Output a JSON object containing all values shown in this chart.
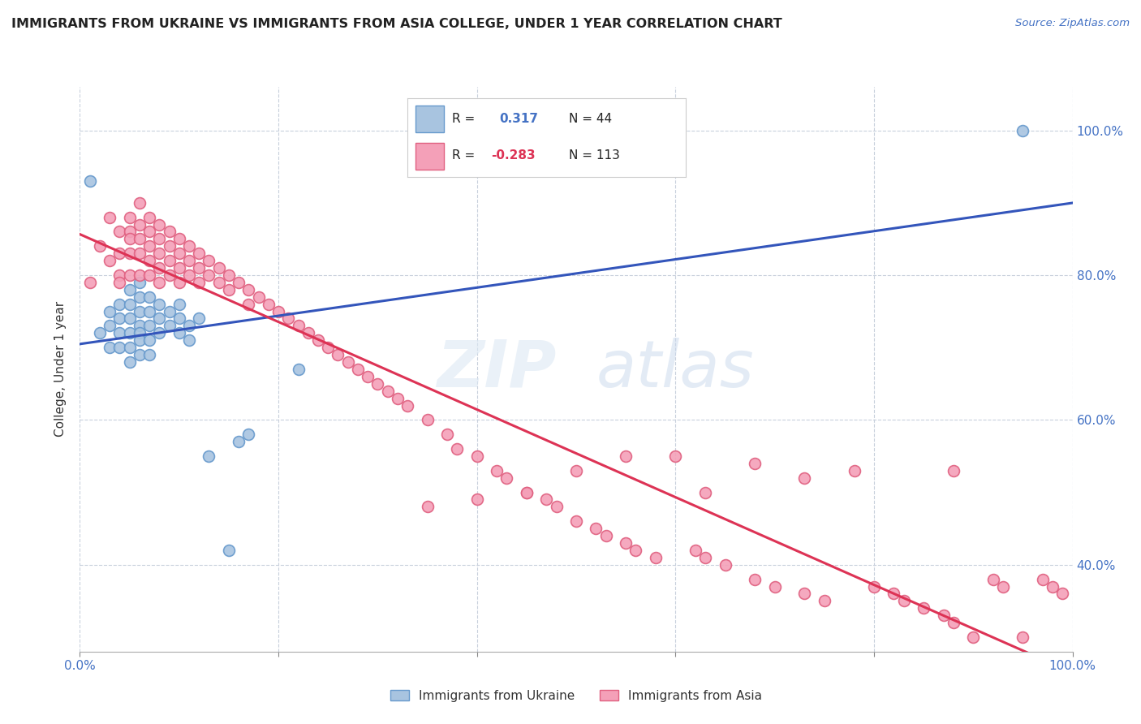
{
  "title": "IMMIGRANTS FROM UKRAINE VS IMMIGRANTS FROM ASIA COLLEGE, UNDER 1 YEAR CORRELATION CHART",
  "source": "Source: ZipAtlas.com",
  "ylabel": "College, Under 1 year",
  "xlim": [
    0,
    1.0
  ],
  "ylim": [
    0.25,
    1.05
  ],
  "ukraine_color": "#a8c4e0",
  "ukraine_edge_color": "#6699cc",
  "asia_color": "#f4a0b8",
  "asia_edge_color": "#e06080",
  "ukraine_line_color": "#3355bb",
  "asia_line_color": "#dd3355",
  "R_ukraine": 0.317,
  "N_ukraine": 44,
  "R_asia": -0.283,
  "N_asia": 113,
  "watermark_zip": "ZIP",
  "watermark_atlas": "atlas",
  "ukraine_scatter_x": [
    0.01,
    0.02,
    0.03,
    0.03,
    0.03,
    0.04,
    0.04,
    0.04,
    0.04,
    0.05,
    0.05,
    0.05,
    0.05,
    0.05,
    0.05,
    0.06,
    0.06,
    0.06,
    0.06,
    0.06,
    0.06,
    0.06,
    0.07,
    0.07,
    0.07,
    0.07,
    0.07,
    0.08,
    0.08,
    0.08,
    0.09,
    0.09,
    0.1,
    0.1,
    0.1,
    0.11,
    0.11,
    0.12,
    0.13,
    0.15,
    0.16,
    0.17,
    0.22,
    0.95
  ],
  "ukraine_scatter_y": [
    0.93,
    0.72,
    0.75,
    0.73,
    0.7,
    0.76,
    0.74,
    0.72,
    0.7,
    0.78,
    0.76,
    0.74,
    0.72,
    0.7,
    0.68,
    0.79,
    0.77,
    0.75,
    0.73,
    0.72,
    0.71,
    0.69,
    0.77,
    0.75,
    0.73,
    0.71,
    0.69,
    0.76,
    0.74,
    0.72,
    0.75,
    0.73,
    0.76,
    0.74,
    0.72,
    0.73,
    0.71,
    0.74,
    0.55,
    0.42,
    0.57,
    0.58,
    0.67,
    1.0
  ],
  "asia_scatter_x": [
    0.01,
    0.02,
    0.03,
    0.03,
    0.04,
    0.04,
    0.04,
    0.04,
    0.05,
    0.05,
    0.05,
    0.05,
    0.05,
    0.06,
    0.06,
    0.06,
    0.06,
    0.06,
    0.07,
    0.07,
    0.07,
    0.07,
    0.07,
    0.08,
    0.08,
    0.08,
    0.08,
    0.08,
    0.09,
    0.09,
    0.09,
    0.09,
    0.1,
    0.1,
    0.1,
    0.1,
    0.11,
    0.11,
    0.11,
    0.12,
    0.12,
    0.12,
    0.13,
    0.13,
    0.14,
    0.14,
    0.15,
    0.15,
    0.16,
    0.17,
    0.17,
    0.18,
    0.19,
    0.2,
    0.21,
    0.22,
    0.23,
    0.24,
    0.25,
    0.26,
    0.27,
    0.28,
    0.29,
    0.3,
    0.31,
    0.32,
    0.33,
    0.35,
    0.37,
    0.38,
    0.4,
    0.42,
    0.43,
    0.45,
    0.47,
    0.48,
    0.5,
    0.52,
    0.53,
    0.55,
    0.56,
    0.58,
    0.6,
    0.62,
    0.63,
    0.65,
    0.68,
    0.7,
    0.73,
    0.75,
    0.78,
    0.8,
    0.82,
    0.83,
    0.85,
    0.87,
    0.88,
    0.9,
    0.92,
    0.93,
    0.95,
    0.97,
    0.98,
    0.99,
    0.88,
    0.73,
    0.68,
    0.63,
    0.55,
    0.5,
    0.45,
    0.4,
    0.35
  ],
  "asia_scatter_y": [
    0.79,
    0.84,
    0.88,
    0.82,
    0.86,
    0.83,
    0.8,
    0.79,
    0.88,
    0.86,
    0.85,
    0.83,
    0.8,
    0.9,
    0.87,
    0.85,
    0.83,
    0.8,
    0.88,
    0.86,
    0.84,
    0.82,
    0.8,
    0.87,
    0.85,
    0.83,
    0.81,
    0.79,
    0.86,
    0.84,
    0.82,
    0.8,
    0.85,
    0.83,
    0.81,
    0.79,
    0.84,
    0.82,
    0.8,
    0.83,
    0.81,
    0.79,
    0.82,
    0.8,
    0.81,
    0.79,
    0.8,
    0.78,
    0.79,
    0.78,
    0.76,
    0.77,
    0.76,
    0.75,
    0.74,
    0.73,
    0.72,
    0.71,
    0.7,
    0.69,
    0.68,
    0.67,
    0.66,
    0.65,
    0.64,
    0.63,
    0.62,
    0.6,
    0.58,
    0.56,
    0.55,
    0.53,
    0.52,
    0.5,
    0.49,
    0.48,
    0.46,
    0.45,
    0.44,
    0.43,
    0.42,
    0.41,
    0.55,
    0.42,
    0.41,
    0.4,
    0.38,
    0.37,
    0.36,
    0.35,
    0.53,
    0.37,
    0.36,
    0.35,
    0.34,
    0.33,
    0.32,
    0.3,
    0.38,
    0.37,
    0.3,
    0.38,
    0.37,
    0.36,
    0.53,
    0.52,
    0.54,
    0.5,
    0.55,
    0.53,
    0.5,
    0.49,
    0.48
  ]
}
